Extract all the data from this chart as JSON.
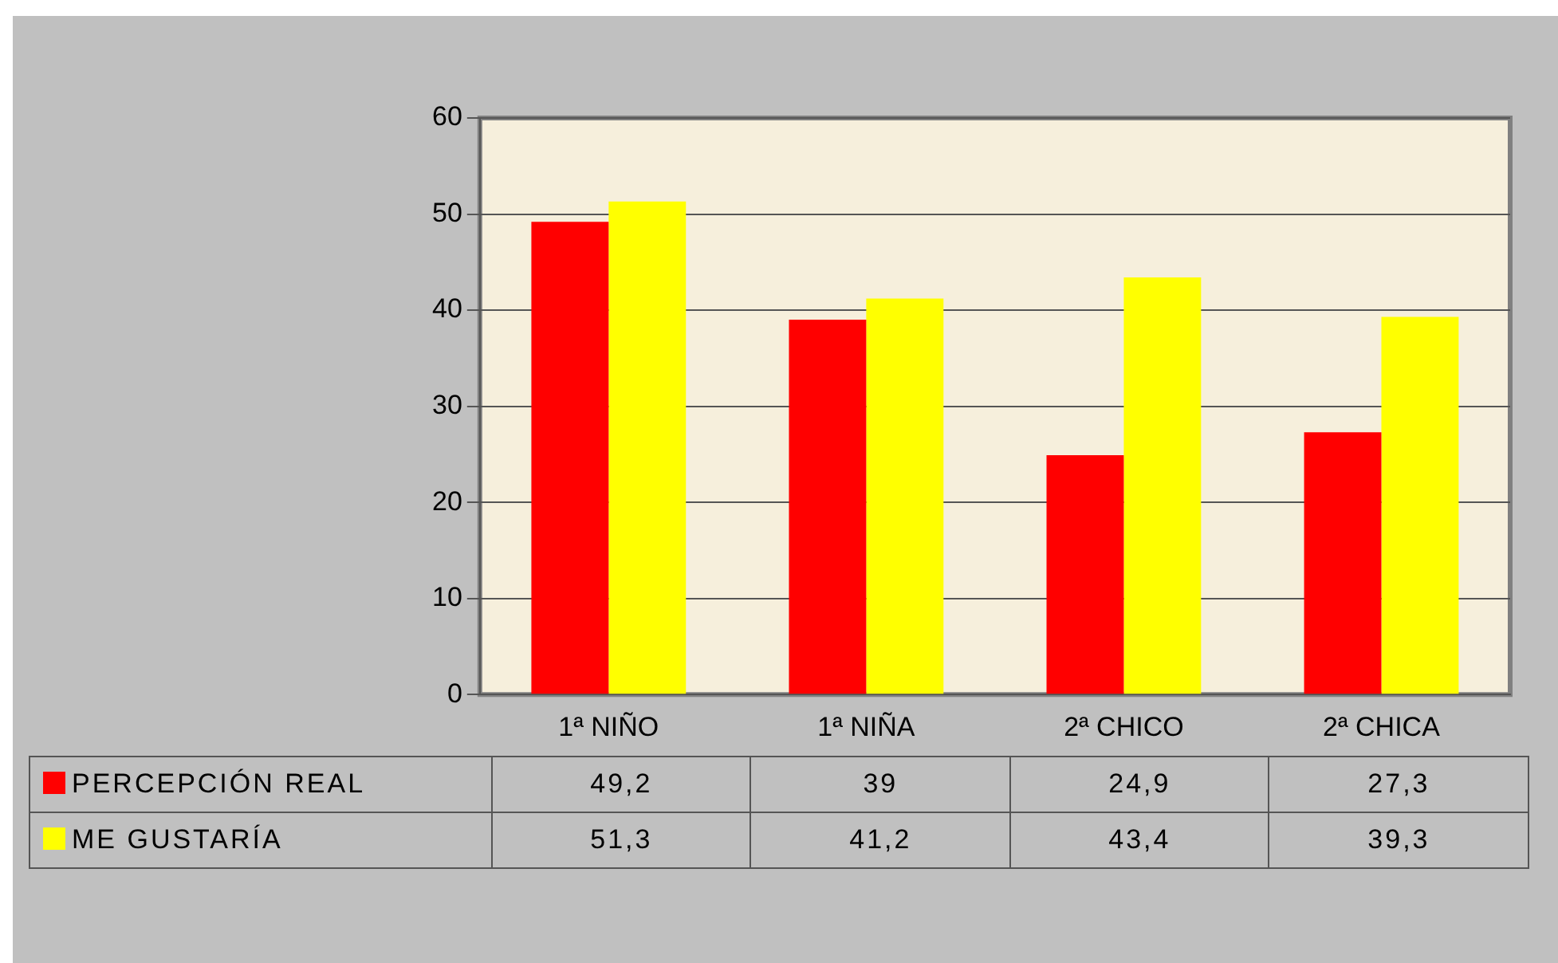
{
  "chart_data": {
    "type": "bar",
    "categories": [
      "1ª NIÑO",
      "1ª NIÑA",
      "2ª CHICO",
      "2ª CHICA"
    ],
    "series": [
      {
        "name": "PERCEPCIÓN REAL",
        "color": "#ff0000",
        "values": [
          49.2,
          39,
          24.9,
          27.3
        ],
        "value_labels": [
          "49,2",
          "39",
          "24,9",
          "27,3"
        ]
      },
      {
        "name": "ME GUSTARÍA",
        "color": "#ffff00",
        "values": [
          51.3,
          41.2,
          43.4,
          39.3
        ],
        "value_labels": [
          "51,3",
          "41,2",
          "43,4",
          "39,3"
        ]
      }
    ],
    "ylim": [
      0,
      60
    ],
    "yticks": [
      0,
      10,
      20,
      30,
      40,
      50,
      60
    ],
    "grid": "y",
    "legend": "bottom"
  }
}
